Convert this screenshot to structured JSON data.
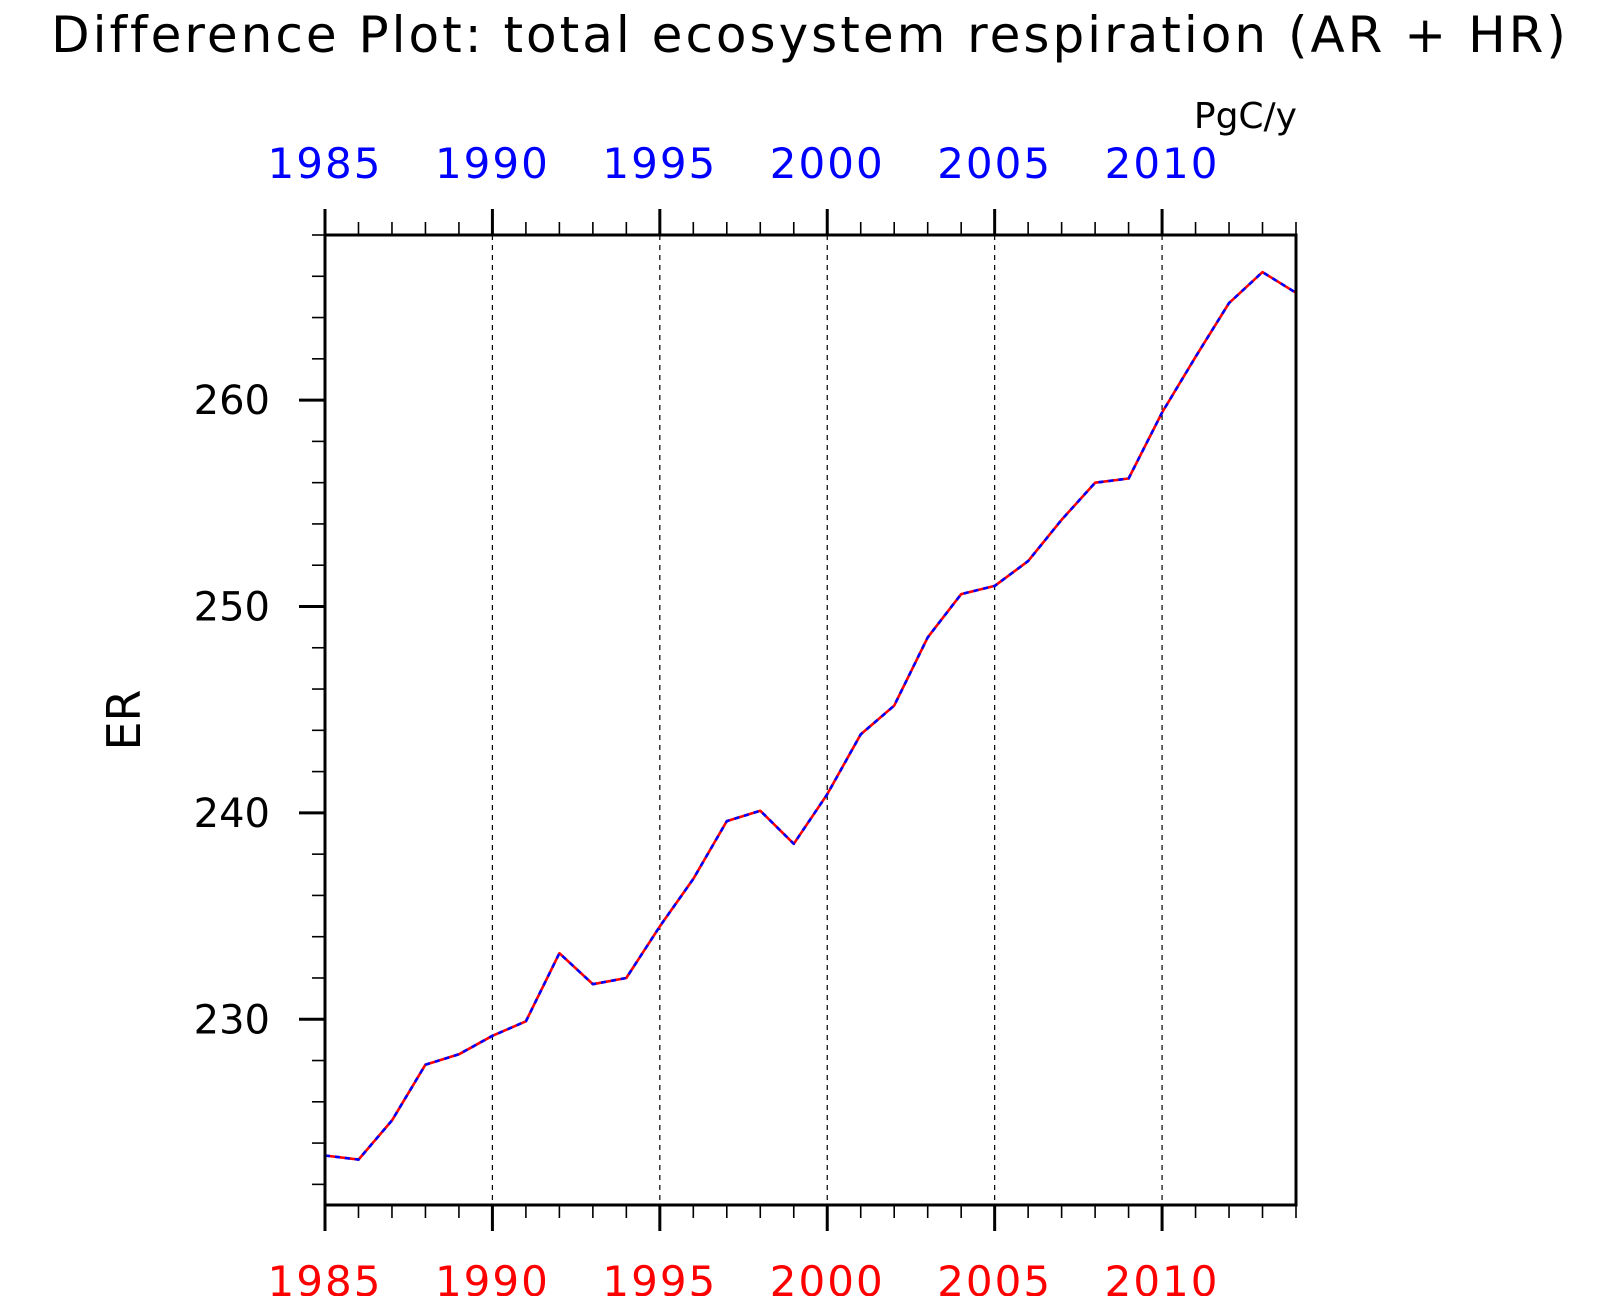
{
  "chart_data": {
    "type": "line",
    "title": "Difference Plot: total ecosystem respiration (AR + HR)",
    "units": "PgC/y",
    "ylabel": "ER",
    "xlabel": "",
    "xlim": [
      1985,
      2014
    ],
    "ylim": [
      221,
      268
    ],
    "x_ticks": [
      1985,
      1990,
      1995,
      2000,
      2005,
      2010
    ],
    "y_ticks": [
      230,
      240,
      250,
      260
    ],
    "grid": "vertical dashed at major x ticks",
    "colors": {
      "series_a": "#ff0000",
      "series_b": "#0000ff",
      "top_ticks": "#0000ff",
      "bottom_ticks": "#ff0000",
      "axis": "#000000"
    },
    "x": [
      1985,
      1986,
      1987,
      1988,
      1989,
      1990,
      1991,
      1992,
      1993,
      1994,
      1995,
      1996,
      1997,
      1998,
      1999,
      2000,
      2001,
      2002,
      2003,
      2004,
      2005,
      2006,
      2007,
      2008,
      2009,
      2010,
      2011,
      2012,
      2013,
      2014
    ],
    "series": [
      {
        "values": [
          223.4,
          223.2,
          225.1,
          227.8,
          228.3,
          229.2,
          229.9,
          233.2,
          231.7,
          232.0,
          234.5,
          236.8,
          239.6,
          240.1,
          238.5,
          240.9,
          243.8,
          245.2,
          248.5,
          250.6,
          251.0,
          252.2,
          254.2,
          256.0,
          256.2,
          259.4,
          262.1,
          264.7,
          266.2,
          265.2
        ]
      },
      {
        "values": [
          223.4,
          223.2,
          225.1,
          227.8,
          228.3,
          229.2,
          229.9,
          233.2,
          231.7,
          232.0,
          234.5,
          236.8,
          239.6,
          240.1,
          238.5,
          240.9,
          243.8,
          245.2,
          248.5,
          250.6,
          251.0,
          252.2,
          254.2,
          256.0,
          256.2,
          259.4,
          262.1,
          264.7,
          266.2,
          265.2
        ]
      }
    ]
  }
}
